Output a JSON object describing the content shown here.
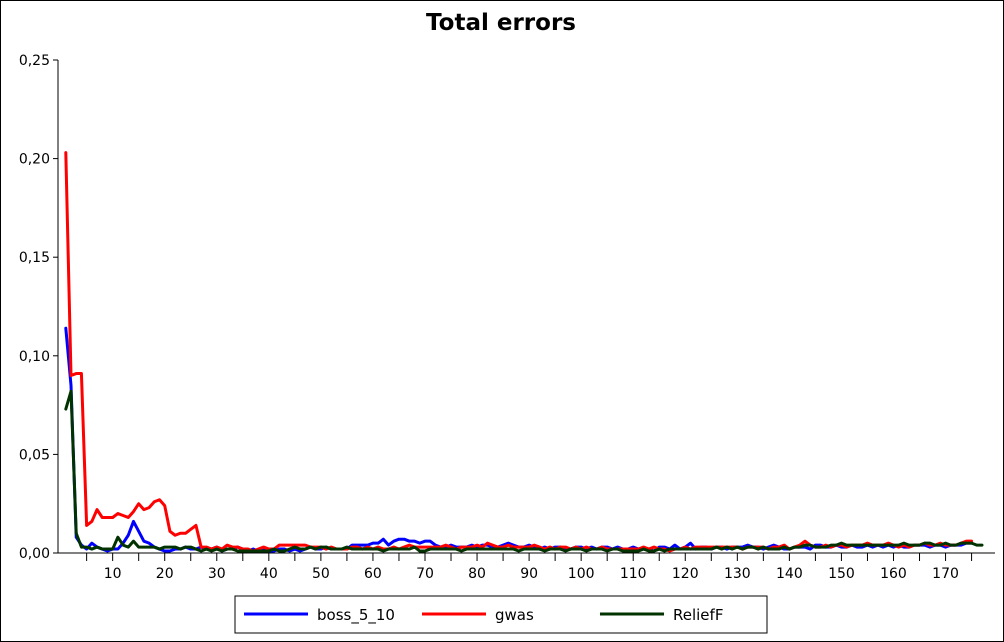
{
  "chart_data": {
    "type": "line",
    "title": "Total errors",
    "xlabel": "",
    "ylabel": "",
    "xlim": [
      -0.5,
      179.5
    ],
    "ylim": [
      0,
      0.25
    ],
    "x_ticks": [
      10,
      20,
      30,
      40,
      50,
      60,
      70,
      80,
      90,
      100,
      110,
      120,
      130,
      140,
      150,
      160,
      170
    ],
    "y_ticks": [
      "0,00",
      "0,05",
      "0,10",
      "0,15",
      "0,20",
      "0,25"
    ],
    "y_tick_values": [
      0,
      0.05,
      0.1,
      0.15,
      0.2,
      0.25
    ],
    "grid": false,
    "legend_position": "bottom",
    "x_start": 1,
    "series": [
      {
        "name": "boss_5_10",
        "color": "#0000ff",
        "values": [
          0.114,
          0.085,
          0.008,
          0.004,
          0.002,
          0.005,
          0.003,
          0.002,
          0.001,
          0.002,
          0.002,
          0.005,
          0.009,
          0.016,
          0.011,
          0.006,
          0.005,
          0.003,
          0.002,
          0.001,
          0.001,
          0.002,
          0.002,
          0.003,
          0.002,
          0.002,
          0.003,
          0.002,
          0.002,
          0.003,
          0.001,
          0.002,
          0.002,
          0.003,
          0.002,
          0.001,
          0.002,
          0.001,
          0.002,
          0.001,
          0.001,
          0.002,
          0.002,
          0.001,
          0.002,
          0.001,
          0.002,
          0.003,
          0.002,
          0.002,
          0.003,
          0.002,
          0.002,
          0.002,
          0.002,
          0.004,
          0.004,
          0.004,
          0.004,
          0.005,
          0.005,
          0.007,
          0.004,
          0.006,
          0.007,
          0.007,
          0.006,
          0.006,
          0.005,
          0.006,
          0.006,
          0.004,
          0.003,
          0.003,
          0.004,
          0.003,
          0.003,
          0.003,
          0.004,
          0.003,
          0.004,
          0.004,
          0.003,
          0.003,
          0.004,
          0.005,
          0.004,
          0.003,
          0.003,
          0.004,
          0.003,
          0.002,
          0.003,
          0.002,
          0.003,
          0.003,
          0.002,
          0.002,
          0.003,
          0.003,
          0.002,
          0.003,
          0.002,
          0.003,
          0.003,
          0.002,
          0.003,
          0.002,
          0.002,
          0.003,
          0.002,
          0.002,
          0.002,
          0.001,
          0.003,
          0.003,
          0.002,
          0.004,
          0.002,
          0.003,
          0.005,
          0.002,
          0.003,
          0.003,
          0.002,
          0.003,
          0.003,
          0.002,
          0.003,
          0.003,
          0.003,
          0.004,
          0.003,
          0.003,
          0.002,
          0.003,
          0.004,
          0.003,
          0.002,
          0.002,
          0.003,
          0.003,
          0.003,
          0.002,
          0.004,
          0.004,
          0.003,
          0.003,
          0.004,
          0.003,
          0.003,
          0.004,
          0.003,
          0.003,
          0.004,
          0.003,
          0.004,
          0.003,
          0.004,
          0.003,
          0.004,
          0.003,
          0.003,
          0.004,
          0.004,
          0.004,
          0.003,
          0.004,
          0.004,
          0.003,
          0.004,
          0.004,
          0.004,
          0.005,
          0.005
        ]
      },
      {
        "name": "gwas",
        "color": "#ff0000",
        "values": [
          0.203,
          0.09,
          0.091,
          0.091,
          0.014,
          0.016,
          0.022,
          0.018,
          0.018,
          0.018,
          0.02,
          0.019,
          0.018,
          0.021,
          0.025,
          0.022,
          0.023,
          0.026,
          0.027,
          0.024,
          0.011,
          0.009,
          0.01,
          0.01,
          0.012,
          0.014,
          0.003,
          0.003,
          0.002,
          0.003,
          0.002,
          0.004,
          0.003,
          0.003,
          0.002,
          0.002,
          0.001,
          0.002,
          0.003,
          0.002,
          0.002,
          0.004,
          0.004,
          0.004,
          0.004,
          0.004,
          0.004,
          0.003,
          0.003,
          0.003,
          0.002,
          0.003,
          0.002,
          0.002,
          0.002,
          0.003,
          0.003,
          0.002,
          0.003,
          0.002,
          0.003,
          0.002,
          0.002,
          0.003,
          0.002,
          0.003,
          0.004,
          0.003,
          0.003,
          0.003,
          0.003,
          0.003,
          0.003,
          0.004,
          0.003,
          0.002,
          0.003,
          0.003,
          0.003,
          0.004,
          0.003,
          0.005,
          0.004,
          0.003,
          0.003,
          0.004,
          0.003,
          0.003,
          0.003,
          0.003,
          0.004,
          0.003,
          0.002,
          0.003,
          0.002,
          0.003,
          0.003,
          0.002,
          0.003,
          0.002,
          0.003,
          0.002,
          0.002,
          0.003,
          0.002,
          0.002,
          0.002,
          0.002,
          0.002,
          0.002,
          0.002,
          0.003,
          0.002,
          0.003,
          0.002,
          0.002,
          0.001,
          0.002,
          0.002,
          0.003,
          0.002,
          0.003,
          0.003,
          0.003,
          0.003,
          0.003,
          0.003,
          0.003,
          0.003,
          0.003,
          0.002,
          0.003,
          0.003,
          0.003,
          0.003,
          0.002,
          0.003,
          0.003,
          0.004,
          0.002,
          0.003,
          0.004,
          0.006,
          0.004,
          0.003,
          0.003,
          0.004,
          0.003,
          0.004,
          0.004,
          0.003,
          0.004,
          0.004,
          0.004,
          0.005,
          0.004,
          0.004,
          0.004,
          0.005,
          0.004,
          0.003,
          0.004,
          0.003,
          0.004,
          0.004,
          0.005,
          0.004,
          0.004,
          0.005,
          0.004,
          0.004,
          0.004,
          0.005,
          0.006,
          0.006
        ]
      },
      {
        "name": "ReliefF",
        "color": "#003300",
        "values": [
          0.073,
          0.082,
          0.01,
          0.003,
          0.003,
          0.002,
          0.003,
          0.002,
          0.002,
          0.002,
          0.008,
          0.004,
          0.003,
          0.006,
          0.003,
          0.003,
          0.003,
          0.003,
          0.002,
          0.003,
          0.003,
          0.003,
          0.002,
          0.003,
          0.003,
          0.002,
          0.001,
          0.002,
          0.001,
          0.002,
          0.001,
          0.002,
          0.002,
          0.001,
          0.001,
          0.001,
          0.001,
          0.001,
          0.001,
          0.001,
          0.002,
          0.001,
          0.001,
          0.002,
          0.003,
          0.002,
          0.002,
          0.003,
          0.002,
          0.003,
          0.003,
          0.002,
          0.002,
          0.002,
          0.003,
          0.002,
          0.002,
          0.002,
          0.002,
          0.002,
          0.002,
          0.001,
          0.002,
          0.002,
          0.002,
          0.002,
          0.002,
          0.003,
          0.001,
          0.001,
          0.002,
          0.002,
          0.002,
          0.002,
          0.002,
          0.002,
          0.001,
          0.002,
          0.002,
          0.002,
          0.002,
          0.002,
          0.002,
          0.002,
          0.002,
          0.002,
          0.002,
          0.001,
          0.002,
          0.002,
          0.002,
          0.002,
          0.001,
          0.002,
          0.002,
          0.002,
          0.001,
          0.002,
          0.002,
          0.002,
          0.001,
          0.002,
          0.002,
          0.002,
          0.001,
          0.002,
          0.002,
          0.001,
          0.001,
          0.001,
          0.001,
          0.002,
          0.001,
          0.001,
          0.002,
          0.001,
          0.002,
          0.002,
          0.002,
          0.002,
          0.002,
          0.002,
          0.002,
          0.002,
          0.002,
          0.003,
          0.002,
          0.003,
          0.002,
          0.003,
          0.002,
          0.003,
          0.003,
          0.002,
          0.003,
          0.002,
          0.002,
          0.002,
          0.003,
          0.002,
          0.003,
          0.003,
          0.004,
          0.004,
          0.003,
          0.003,
          0.003,
          0.004,
          0.004,
          0.005,
          0.004,
          0.004,
          0.004,
          0.004,
          0.004,
          0.004,
          0.004,
          0.004,
          0.004,
          0.004,
          0.004,
          0.005,
          0.004,
          0.004,
          0.004,
          0.005,
          0.005,
          0.004,
          0.004,
          0.005,
          0.004,
          0.004,
          0.005,
          0.005,
          0.005,
          0.004,
          0.004
        ]
      }
    ]
  }
}
